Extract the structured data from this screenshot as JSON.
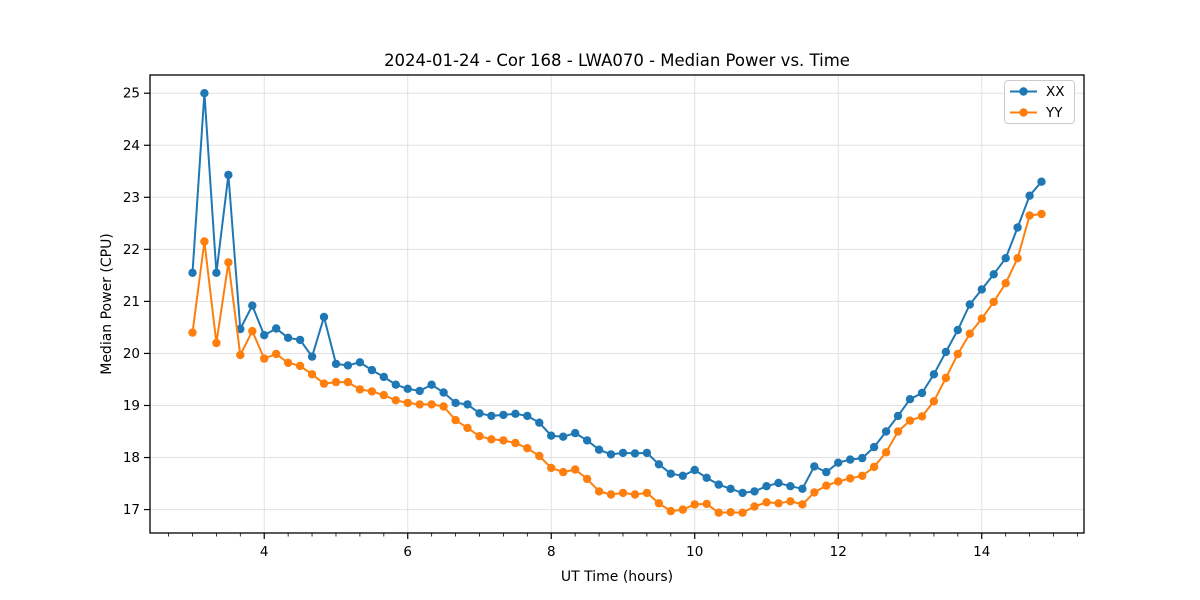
{
  "chart_data": {
    "type": "line",
    "title": "2024-01-24 - Cor 168 - LWA070 - Median Power vs. Time",
    "xlabel": "UT Time (hours)",
    "ylabel": "Median Power (CPU)",
    "xlim": [
      2.408,
      15.425
    ],
    "ylim": [
      16.55,
      25.35
    ],
    "x_ticks": [
      4,
      6,
      8,
      10,
      12,
      14
    ],
    "y_ticks": [
      17,
      18,
      19,
      20,
      21,
      22,
      23,
      24,
      25
    ],
    "x_minor_step": 0.33333,
    "grid": true,
    "legend": {
      "position": "upper right",
      "entries": [
        "XX",
        "YY"
      ]
    },
    "x": [
      3.0,
      3.1667,
      3.3333,
      3.5,
      3.6667,
      3.8333,
      4.0,
      4.1667,
      4.3333,
      4.5,
      4.6667,
      4.8333,
      5.0,
      5.1667,
      5.3333,
      5.5,
      5.6667,
      5.8333,
      6.0,
      6.1667,
      6.3333,
      6.5,
      6.6667,
      6.8333,
      7.0,
      7.1667,
      7.3333,
      7.5,
      7.6667,
      7.8333,
      8.0,
      8.1667,
      8.3333,
      8.5,
      8.6667,
      8.8333,
      9.0,
      9.1667,
      9.3333,
      9.5,
      9.6667,
      9.8333,
      10.0,
      10.1667,
      10.3333,
      10.5,
      10.6667,
      10.8333,
      11.0,
      11.1667,
      11.3333,
      11.5,
      11.6667,
      11.8333,
      12.0,
      12.1667,
      12.3333,
      12.5,
      12.6667,
      12.8333,
      13.0,
      13.1667,
      13.3333,
      13.5,
      13.6667,
      13.8333,
      14.0,
      14.1667,
      14.3333,
      14.5,
      14.6667,
      14.8333
    ],
    "series": [
      {
        "name": "XX",
        "color": "#1f77b4",
        "values": [
          21.55,
          25.0,
          21.55,
          23.43,
          20.47,
          20.92,
          20.35,
          20.48,
          20.3,
          20.26,
          19.94,
          20.7,
          19.8,
          19.77,
          19.83,
          19.68,
          19.55,
          19.4,
          19.32,
          19.28,
          19.4,
          19.25,
          19.05,
          19.02,
          18.85,
          18.8,
          18.82,
          18.84,
          18.8,
          18.67,
          18.42,
          18.4,
          18.47,
          18.33,
          18.15,
          18.06,
          18.09,
          18.08,
          18.09,
          17.87,
          17.69,
          17.65,
          17.76,
          17.61,
          17.48,
          17.4,
          17.32,
          17.35,
          17.45,
          17.51,
          17.45,
          17.4,
          17.83,
          17.72,
          17.9,
          17.96,
          17.99,
          18.2,
          18.5,
          18.8,
          19.12,
          19.24,
          19.6,
          20.03,
          20.45,
          20.94,
          21.23,
          21.52,
          21.83,
          22.42,
          23.03,
          23.3
        ]
      },
      {
        "name": "YY",
        "color": "#ff7f0e",
        "values": [
          20.4,
          22.15,
          20.2,
          21.75,
          19.97,
          20.43,
          19.9,
          19.99,
          19.82,
          19.76,
          19.6,
          19.42,
          19.45,
          19.45,
          19.31,
          19.27,
          19.2,
          19.1,
          19.05,
          19.02,
          19.02,
          18.98,
          18.72,
          18.57,
          18.41,
          18.35,
          18.33,
          18.28,
          18.18,
          18.03,
          17.8,
          17.72,
          17.77,
          17.59,
          17.35,
          17.29,
          17.32,
          17.29,
          17.32,
          17.12,
          16.97,
          17.0,
          17.1,
          17.11,
          16.94,
          16.95,
          16.94,
          17.06,
          17.14,
          17.12,
          17.16,
          17.1,
          17.33,
          17.46,
          17.54,
          17.6,
          17.65,
          17.82,
          18.1,
          18.5,
          18.71,
          18.79,
          19.08,
          19.53,
          19.99,
          20.38,
          20.67,
          20.99,
          21.35,
          21.83,
          22.65,
          22.68
        ]
      }
    ]
  }
}
